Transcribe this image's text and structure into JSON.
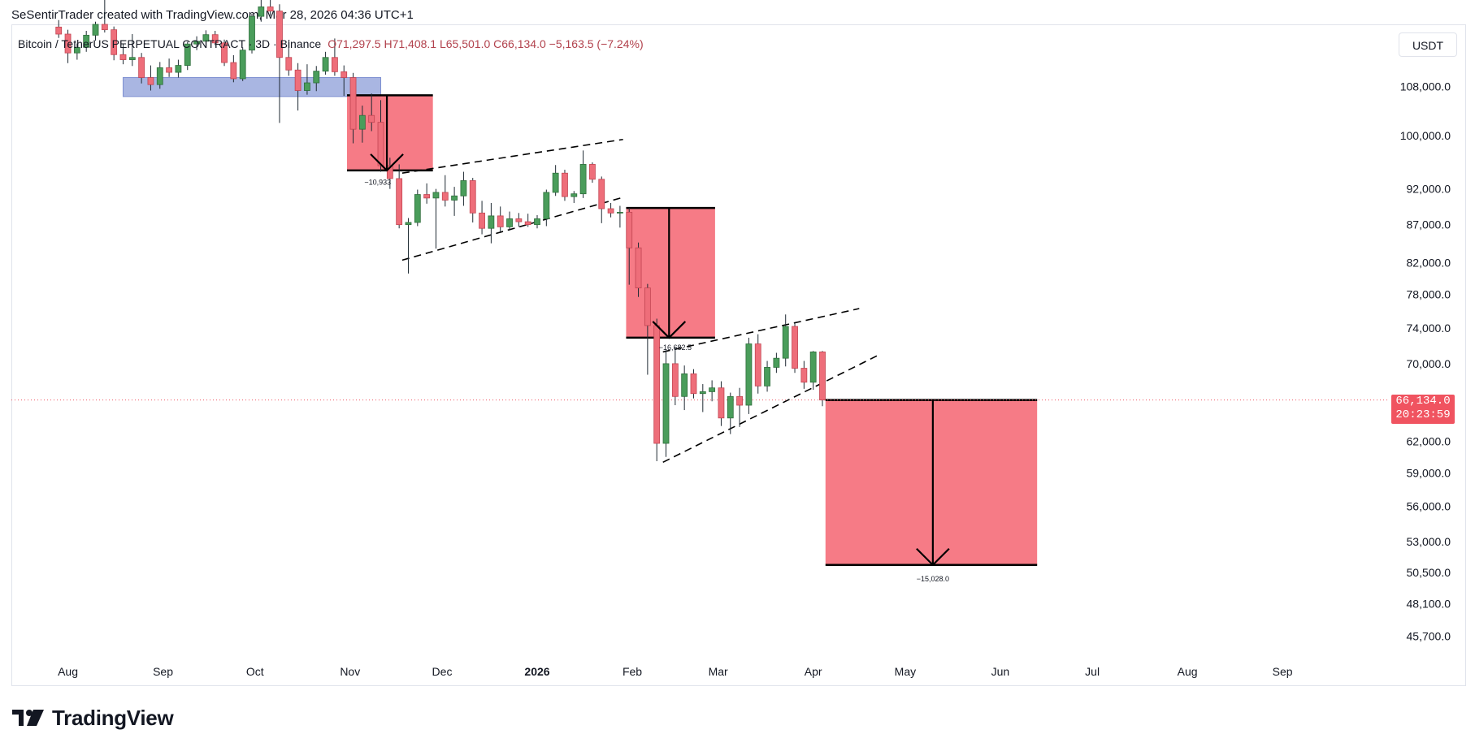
{
  "header": {
    "attribution": "SeSentirTrader created with TradingView.com, Mar 28, 2026 04:36 UTC+1"
  },
  "legend": {
    "symbol": "Bitcoin / TetherUS PERPETUAL CONTRACT · 3D · Binance",
    "ohlc": "O71,297.5  H71,408.1  L65,501.0  C66,134.0  −5,163.5 (−7.24%)"
  },
  "currency": "USDT",
  "last_price": {
    "price": "66,134.0",
    "countdown": "20:23:59"
  },
  "footer": {
    "brand": "TradingView"
  },
  "colors": {
    "bull": "#4a9d5b",
    "bear": "#ee6e7a",
    "target_zone": "#f5707c",
    "support_zone": "#9aa9dd",
    "price_label": "#f05360"
  },
  "icons": {
    "logo": "tradingview-logo-icon"
  },
  "chart_data": {
    "type": "candlestick",
    "interval": "3D",
    "y_scale": "log",
    "y_range": [
      44000,
      116000
    ],
    "y_ticks": [
      {
        "label": "108,000.0",
        "value": 108000
      },
      {
        "label": "100,000.0",
        "value": 100000
      },
      {
        "label": "92,000.0",
        "value": 92000
      },
      {
        "label": "87,000.0",
        "value": 87000
      },
      {
        "label": "82,000.0",
        "value": 82000
      },
      {
        "label": "78,000.0",
        "value": 78000
      },
      {
        "label": "74,000.0",
        "value": 74000
      },
      {
        "label": "70,000.0",
        "value": 70000
      },
      {
        "label": "62,000.0",
        "value": 62000
      },
      {
        "label": "59,000.0",
        "value": 59000
      },
      {
        "label": "56,000.0",
        "value": 56000
      },
      {
        "label": "53,000.0",
        "value": 53000
      },
      {
        "label": "50,500.0",
        "value": 50500
      },
      {
        "label": "48,100.0",
        "value": 48100
      },
      {
        "label": "45,700.0",
        "value": 45700
      }
    ],
    "x_ticks": [
      {
        "label": "Aug",
        "date": "2025-08-01",
        "bold": false
      },
      {
        "label": "Sep",
        "date": "2025-09-01",
        "bold": false
      },
      {
        "label": "Oct",
        "date": "2025-10-01",
        "bold": false
      },
      {
        "label": "Nov",
        "date": "2025-11-01",
        "bold": false
      },
      {
        "label": "Dec",
        "date": "2025-12-01",
        "bold": false
      },
      {
        "label": "2026",
        "date": "2026-01-01",
        "bold": true
      },
      {
        "label": "Feb",
        "date": "2026-02-01",
        "bold": false
      },
      {
        "label": "Mar",
        "date": "2026-03-01",
        "bold": false
      },
      {
        "label": "Apr",
        "date": "2026-04-01",
        "bold": false
      },
      {
        "label": "May",
        "date": "2026-05-01",
        "bold": false
      },
      {
        "label": "Jun",
        "date": "2026-06-01",
        "bold": false
      },
      {
        "label": "Jul",
        "date": "2026-07-01",
        "bold": false
      },
      {
        "label": "Aug",
        "date": "2026-08-01",
        "bold": false
      },
      {
        "label": "Sep",
        "date": "2026-09-01",
        "bold": false
      }
    ],
    "candles": [
      {
        "t": "2025-07-29",
        "o": 118500,
        "h": 119800,
        "l": 116500,
        "c": 117200
      },
      {
        "t": "2025-08-01",
        "o": 117200,
        "h": 118000,
        "l": 112000,
        "c": 113800
      },
      {
        "t": "2025-08-04",
        "o": 113800,
        "h": 115500,
        "l": 112600,
        "c": 114800
      },
      {
        "t": "2025-08-07",
        "o": 114800,
        "h": 117800,
        "l": 114000,
        "c": 117000
      },
      {
        "t": "2025-08-10",
        "o": 117000,
        "h": 119500,
        "l": 116000,
        "c": 119000
      },
      {
        "t": "2025-08-13",
        "o": 119000,
        "h": 124400,
        "l": 117500,
        "c": 118000
      },
      {
        "t": "2025-08-16",
        "o": 118000,
        "h": 118600,
        "l": 112500,
        "c": 113500
      },
      {
        "t": "2025-08-19",
        "o": 113500,
        "h": 115500,
        "l": 111800,
        "c": 112600
      },
      {
        "t": "2025-08-22",
        "o": 112600,
        "h": 117200,
        "l": 111500,
        "c": 113000
      },
      {
        "t": "2025-08-25",
        "o": 113000,
        "h": 113800,
        "l": 108500,
        "c": 109500
      },
      {
        "t": "2025-08-28",
        "o": 109500,
        "h": 111600,
        "l": 107300,
        "c": 108300
      },
      {
        "t": "2025-08-31",
        "o": 108300,
        "h": 112200,
        "l": 107600,
        "c": 111200
      },
      {
        "t": "2025-09-03",
        "o": 111200,
        "h": 112800,
        "l": 109600,
        "c": 110400
      },
      {
        "t": "2025-09-06",
        "o": 110400,
        "h": 112600,
        "l": 109500,
        "c": 111600
      },
      {
        "t": "2025-09-09",
        "o": 111600,
        "h": 115800,
        "l": 110800,
        "c": 115400
      },
      {
        "t": "2025-09-12",
        "o": 115400,
        "h": 116800,
        "l": 114300,
        "c": 115900
      },
      {
        "t": "2025-09-15",
        "o": 115900,
        "h": 117900,
        "l": 114800,
        "c": 117100
      },
      {
        "t": "2025-09-18",
        "o": 117100,
        "h": 117800,
        "l": 115200,
        "c": 115600
      },
      {
        "t": "2025-09-21",
        "o": 115600,
        "h": 116200,
        "l": 111500,
        "c": 112100
      },
      {
        "t": "2025-09-24",
        "o": 112100,
        "h": 113400,
        "l": 108700,
        "c": 109300
      },
      {
        "t": "2025-09-27",
        "o": 109300,
        "h": 114800,
        "l": 108900,
        "c": 114300
      },
      {
        "t": "2025-09-30",
        "o": 114300,
        "h": 121000,
        "l": 113700,
        "c": 120500
      },
      {
        "t": "2025-10-03",
        "o": 120500,
        "h": 126000,
        "l": 119500,
        "c": 122300
      },
      {
        "t": "2025-10-06",
        "o": 122300,
        "h": 126200,
        "l": 120600,
        "c": 121500
      },
      {
        "t": "2025-10-09",
        "o": 121500,
        "h": 122800,
        "l": 102000,
        "c": 113000
      },
      {
        "t": "2025-10-12",
        "o": 113000,
        "h": 116000,
        "l": 109800,
        "c": 110800
      },
      {
        "t": "2025-10-15",
        "o": 110800,
        "h": 112000,
        "l": 104000,
        "c": 107300
      },
      {
        "t": "2025-10-18",
        "o": 107300,
        "h": 111800,
        "l": 106600,
        "c": 108600
      },
      {
        "t": "2025-10-21",
        "o": 108600,
        "h": 111500,
        "l": 107200,
        "c": 110600
      },
      {
        "t": "2025-10-24",
        "o": 110600,
        "h": 114000,
        "l": 110000,
        "c": 113000
      },
      {
        "t": "2025-10-27",
        "o": 113000,
        "h": 116400,
        "l": 109800,
        "c": 110500
      },
      {
        "t": "2025-10-30",
        "o": 110500,
        "h": 111600,
        "l": 106400,
        "c": 109500
      },
      {
        "t": "2025-11-02",
        "o": 109500,
        "h": 110300,
        "l": 98800,
        "c": 101000
      },
      {
        "t": "2025-11-05",
        "o": 101000,
        "h": 104800,
        "l": 98900,
        "c": 103200
      },
      {
        "t": "2025-11-08",
        "o": 103200,
        "h": 106800,
        "l": 100700,
        "c": 102100
      },
      {
        "t": "2025-11-11",
        "o": 102100,
        "h": 105700,
        "l": 94500,
        "c": 95400
      },
      {
        "t": "2025-11-14",
        "o": 95400,
        "h": 96600,
        "l": 92000,
        "c": 93500
      },
      {
        "t": "2025-11-17",
        "o": 93500,
        "h": 95600,
        "l": 86500,
        "c": 87000
      },
      {
        "t": "2025-11-20",
        "o": 87000,
        "h": 87900,
        "l": 80600,
        "c": 87300
      },
      {
        "t": "2025-11-23",
        "o": 87300,
        "h": 91900,
        "l": 86800,
        "c": 91200
      },
      {
        "t": "2025-11-26",
        "o": 91200,
        "h": 92800,
        "l": 89900,
        "c": 90700
      },
      {
        "t": "2025-11-29",
        "o": 90700,
        "h": 92000,
        "l": 83800,
        "c": 91500
      },
      {
        "t": "2025-12-02",
        "o": 91500,
        "h": 94000,
        "l": 89500,
        "c": 90400
      },
      {
        "t": "2025-12-05",
        "o": 90400,
        "h": 92300,
        "l": 88200,
        "c": 91000
      },
      {
        "t": "2025-12-08",
        "o": 91000,
        "h": 94500,
        "l": 89600,
        "c": 93200
      },
      {
        "t": "2025-12-11",
        "o": 93200,
        "h": 93600,
        "l": 87300,
        "c": 88600
      },
      {
        "t": "2025-12-14",
        "o": 88600,
        "h": 90300,
        "l": 85700,
        "c": 86500
      },
      {
        "t": "2025-12-17",
        "o": 86500,
        "h": 90000,
        "l": 84500,
        "c": 88200
      },
      {
        "t": "2025-12-20",
        "o": 88200,
        "h": 89500,
        "l": 86000,
        "c": 86700
      },
      {
        "t": "2025-12-23",
        "o": 86700,
        "h": 88800,
        "l": 86200,
        "c": 87800
      },
      {
        "t": "2025-12-26",
        "o": 87800,
        "h": 88600,
        "l": 86700,
        "c": 87400
      },
      {
        "t": "2025-12-29",
        "o": 87400,
        "h": 88500,
        "l": 86700,
        "c": 87000
      },
      {
        "t": "2026-01-01",
        "o": 87000,
        "h": 88300,
        "l": 86500,
        "c": 87800
      },
      {
        "t": "2026-01-04",
        "o": 87800,
        "h": 91900,
        "l": 86800,
        "c": 91500
      },
      {
        "t": "2026-01-07",
        "o": 91500,
        "h": 95500,
        "l": 91000,
        "c": 94300
      },
      {
        "t": "2026-01-10",
        "o": 94300,
        "h": 94800,
        "l": 90300,
        "c": 90900
      },
      {
        "t": "2026-01-13",
        "o": 90900,
        "h": 91700,
        "l": 90000,
        "c": 91300
      },
      {
        "t": "2026-01-16",
        "o": 91300,
        "h": 97700,
        "l": 90700,
        "c": 95600
      },
      {
        "t": "2026-01-19",
        "o": 95600,
        "h": 95900,
        "l": 92900,
        "c": 93400
      },
      {
        "t": "2026-01-22",
        "o": 93400,
        "h": 93800,
        "l": 87200,
        "c": 89200
      },
      {
        "t": "2026-01-25",
        "o": 89200,
        "h": 90000,
        "l": 88000,
        "c": 88600
      },
      {
        "t": "2026-01-28",
        "o": 88600,
        "h": 89600,
        "l": 86600,
        "c": 88700
      },
      {
        "t": "2026-01-31",
        "o": 88700,
        "h": 89300,
        "l": 79200,
        "c": 83900
      },
      {
        "t": "2026-02-03",
        "o": 83900,
        "h": 84600,
        "l": 77700,
        "c": 78800
      },
      {
        "t": "2026-02-06",
        "o": 78800,
        "h": 79300,
        "l": 68800,
        "c": 74300
      },
      {
        "t": "2026-02-09",
        "o": 74300,
        "h": 75100,
        "l": 60100,
        "c": 61800
      },
      {
        "t": "2026-02-12",
        "o": 61800,
        "h": 71500,
        "l": 60500,
        "c": 70000
      },
      {
        "t": "2026-02-15",
        "o": 70000,
        "h": 71800,
        "l": 65600,
        "c": 66500
      },
      {
        "t": "2026-02-18",
        "o": 66500,
        "h": 69800,
        "l": 65100,
        "c": 68900
      },
      {
        "t": "2026-02-21",
        "o": 68900,
        "h": 69400,
        "l": 66300,
        "c": 66800
      },
      {
        "t": "2026-02-24",
        "o": 66800,
        "h": 67800,
        "l": 64900,
        "c": 67000
      },
      {
        "t": "2026-02-27",
        "o": 67000,
        "h": 68200,
        "l": 66000,
        "c": 67400
      },
      {
        "t": "2026-03-02",
        "o": 67400,
        "h": 68100,
        "l": 63500,
        "c": 64300
      },
      {
        "t": "2026-03-05",
        "o": 64300,
        "h": 66900,
        "l": 62700,
        "c": 66500
      },
      {
        "t": "2026-03-08",
        "o": 66500,
        "h": 67400,
        "l": 63400,
        "c": 65600
      },
      {
        "t": "2026-03-11",
        "o": 65600,
        "h": 72900,
        "l": 64700,
        "c": 72200
      },
      {
        "t": "2026-03-14",
        "o": 72200,
        "h": 73300,
        "l": 66800,
        "c": 67600
      },
      {
        "t": "2026-03-17",
        "o": 67600,
        "h": 70300,
        "l": 67000,
        "c": 69600
      },
      {
        "t": "2026-03-20",
        "o": 69600,
        "h": 71200,
        "l": 69000,
        "c": 70600
      },
      {
        "t": "2026-03-23",
        "o": 70600,
        "h": 75600,
        "l": 69700,
        "c": 74200
      },
      {
        "t": "2026-03-26",
        "o": 74200,
        "h": 74600,
        "l": 69000,
        "c": 69500
      },
      {
        "t": "2026-03-29",
        "o": 69500,
        "h": 70300,
        "l": 67300,
        "c": 68000
      },
      {
        "t": "2026-04-01",
        "o": 68000,
        "h": 71400,
        "l": 67200,
        "c": 71300
      },
      {
        "t": "2026-04-04",
        "o": 71297.5,
        "h": 71408.1,
        "l": 65501,
        "c": 66134
      }
    ],
    "zones": [
      {
        "kind": "support",
        "t1": "2025-08-19",
        "t2": "2025-11-11",
        "top": 109500,
        "bottom": 106300
      },
      {
        "kind": "target",
        "t1": "2025-10-31",
        "t2": "2025-11-28",
        "top": 106500,
        "bottom": 94700
      },
      {
        "kind": "target",
        "t1": "2026-01-30",
        "t2": "2026-02-28",
        "top": 89300,
        "bottom": 72900
      },
      {
        "kind": "target",
        "t1": "2026-04-05",
        "t2": "2026-06-13",
        "top": 66134,
        "bottom": 51100
      }
    ],
    "arrows": [
      {
        "t": "2025-11-13",
        "from": 106500,
        "to": 94700
      },
      {
        "t": "2026-02-13",
        "from": 89300,
        "to": 72900
      },
      {
        "t": "2026-05-10",
        "from": 66134,
        "to": 51100
      }
    ],
    "channel_lines": [
      {
        "t1": "2025-11-18",
        "p1": 82300,
        "t2": "2026-01-29",
        "p2": 90800
      },
      {
        "t1": "2025-11-18",
        "p1": 94300,
        "t2": "2026-01-29",
        "p2": 99400
      },
      {
        "t1": "2026-02-11",
        "p1": 60000,
        "t2": "2026-04-22",
        "p2": 70900
      },
      {
        "t1": "2026-02-11",
        "p1": 71300,
        "t2": "2026-04-16",
        "p2": 76300
      }
    ],
    "annotations": [
      {
        "text": "−10,933",
        "t": "2025-11-10",
        "price": 92600
      },
      {
        "text": "−16,682.5",
        "t": "2026-02-15",
        "price": 71500
      },
      {
        "text": "−15,028.0",
        "t": "2026-05-10",
        "price": 49800
      }
    ]
  }
}
